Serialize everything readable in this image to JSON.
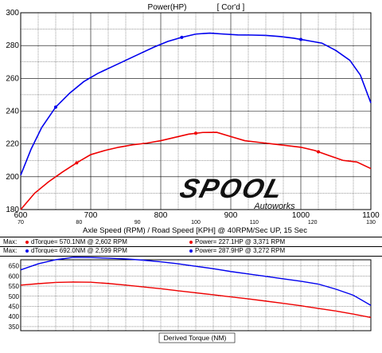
{
  "chart_data": [
    {
      "type": "line",
      "title": "Power(HP)",
      "subtitle": "[ Cor'd ]",
      "xlabel": "Axle Speed (RPM) / Road Speed [KPH] @ 40RPM/Sec UP, 15 Sec",
      "x_range": [
        600,
        1100
      ],
      "y_range": [
        180,
        300
      ],
      "x_ticks": [
        "600",
        "700",
        "800",
        "900",
        "1000",
        "1100"
      ],
      "x_ticks_secondary": [
        "70",
        "80",
        "90",
        "100",
        "110",
        "120",
        "130"
      ],
      "y_ticks": [
        "180",
        "200",
        "220",
        "240",
        "260",
        "280",
        "300"
      ],
      "grid": true,
      "series": [
        {
          "color": "#0000ee",
          "x": [
            600,
            615,
            630,
            650,
            670,
            690,
            710,
            730,
            750,
            770,
            790,
            810,
            830,
            850,
            870,
            890,
            910,
            930,
            950,
            970,
            990,
            1010,
            1030,
            1050,
            1070,
            1085,
            1100
          ],
          "y": [
            201,
            217,
            230,
            242.5,
            251,
            258,
            263,
            267,
            271,
            275,
            279,
            282.5,
            285,
            287,
            287.6,
            287,
            286.5,
            286.4,
            286.2,
            285.5,
            284.5,
            283,
            281.5,
            277,
            271,
            262,
            245
          ]
        },
        {
          "color": "#ee0000",
          "x": [
            600,
            620,
            640,
            660,
            680,
            700,
            720,
            740,
            760,
            780,
            800,
            820,
            840,
            860,
            880,
            900,
            920,
            940,
            960,
            980,
            1000,
            1020,
            1040,
            1060,
            1080,
            1100
          ],
          "y": [
            180,
            190,
            197,
            203,
            208.5,
            213.5,
            216,
            218,
            219.5,
            220.5,
            222,
            224,
            226,
            227,
            227.1,
            224.5,
            222,
            221,
            220,
            219,
            218,
            216,
            213,
            210,
            209,
            205
          ]
        }
      ],
      "markers": [
        {
          "series": 0,
          "x": [
            650,
            830,
            1000
          ]
        },
        {
          "series": 1,
          "x": [
            680,
            850,
            1025
          ]
        }
      ]
    },
    {
      "type": "line",
      "title": "Derived Torque (NM)",
      "x_range": [
        600,
        1100
      ],
      "y_range": [
        330,
        680
      ],
      "y_ticks": [
        "350",
        "400",
        "450",
        "500",
        "550",
        "600",
        "650"
      ],
      "grid": true,
      "series": [
        {
          "color": "#0000ee",
          "x": [
            600,
            625,
            650,
            675,
            700,
            725,
            750,
            775,
            800,
            825,
            850,
            875,
            900,
            925,
            950,
            975,
            1000,
            1025,
            1050,
            1075,
            1100
          ],
          "y": [
            630,
            660,
            680,
            692,
            691,
            688,
            684,
            678,
            670,
            660,
            648,
            636,
            622,
            610,
            598,
            586,
            574,
            560,
            535,
            505,
            455
          ]
        },
        {
          "color": "#ee0000",
          "x": [
            600,
            625,
            650,
            675,
            700,
            725,
            750,
            775,
            800,
            825,
            850,
            875,
            900,
            925,
            950,
            975,
            1000,
            1025,
            1050,
            1075,
            1100
          ],
          "y": [
            555,
            562,
            568,
            570,
            569,
            563,
            555,
            546,
            537,
            527,
            517,
            507,
            497,
            487,
            476,
            465,
            453,
            440,
            427,
            412,
            395
          ]
        }
      ]
    }
  ],
  "legend": {
    "rows": [
      {
        "max_label": "Max:",
        "left_color": "#ee0000",
        "left_text": "dTorque= 570.1NM @ 2,602 RPM",
        "right_color": "#ee0000",
        "right_text": "Power= 227.1HP @ 3,371 RPM"
      },
      {
        "max_label": "Max:",
        "left_color": "#0000ee",
        "left_text": "dTorque= 692.0NM @ 2,599 RPM",
        "right_color": "#0000ee",
        "right_text": "Power= 287.9HP @ 3,272 RPM"
      }
    ]
  },
  "watermark": {
    "brand": "SPOOL",
    "tagline": "Autoworks"
  }
}
